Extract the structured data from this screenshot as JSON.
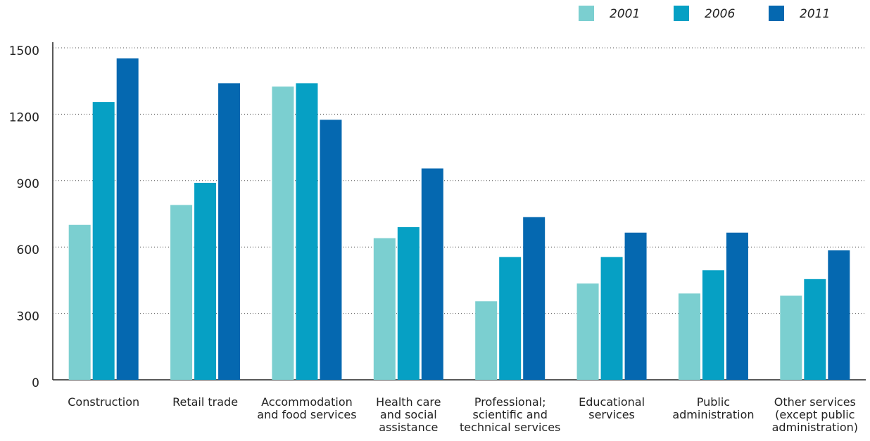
{
  "chart_data": {
    "type": "bar",
    "categories": [
      "Construction",
      "Retail trade",
      "Accommodation\nand food services",
      "Health care\nand social\nassistance",
      "Professional;\nscientific and\ntechnical services",
      "Educational\nservices",
      "Public\nadministration",
      "Other services\n(except public\nadministration)"
    ],
    "series": [
      {
        "name": "2001",
        "color": "#7bcfd0",
        "values": [
          700,
          790,
          1325,
          640,
          355,
          435,
          390,
          380
        ]
      },
      {
        "name": "2006",
        "color": "#06a0c4",
        "values": [
          1255,
          890,
          1340,
          690,
          555,
          555,
          495,
          455
        ]
      },
      {
        "name": "2011",
        "color": "#0568b0",
        "values": [
          1452,
          1340,
          1175,
          955,
          735,
          665,
          665,
          585
        ]
      }
    ],
    "ylim": [
      0,
      1500
    ],
    "yticks": [
      0,
      300,
      600,
      900,
      1200,
      1500
    ],
    "grid": true,
    "legend": "top-right"
  }
}
